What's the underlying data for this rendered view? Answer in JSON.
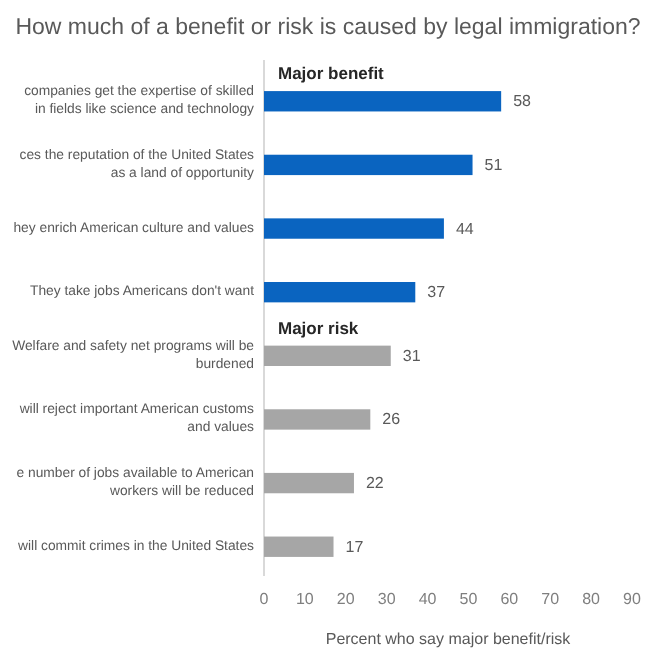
{
  "chart_data": {
    "type": "bar",
    "orientation": "horizontal",
    "title": "How much of a benefit or risk is caused by legal immigration?",
    "xlabel": "Percent who say major benefit/risk",
    "categories": [
      "companies get the expertise of skilled\nin fields like science and technology",
      "ces the reputation of the United States\nas a land of opportunity",
      "hey enrich American culture and values",
      "They take jobs Americans don't want",
      "Welfare and safety net programs will be\nburdened",
      "will reject important American customs\nand values",
      "e number of jobs available to American\nworkers will be reduced",
      "will commit crimes in the United States"
    ],
    "values": [
      58,
      51,
      44,
      37,
      31,
      26,
      22,
      17
    ],
    "colors": [
      "#0a64c0",
      "#0a64c0",
      "#0a64c0",
      "#0a64c0",
      "#a6a6a6",
      "#a6a6a6",
      "#a6a6a6",
      "#a6a6a6"
    ],
    "annotations": [
      "Major benefit",
      "Major risk"
    ],
    "xlim": [
      0,
      90
    ],
    "xticks": [
      0,
      10,
      20,
      30,
      40,
      50,
      60,
      70,
      80,
      90
    ],
    "data_labels": true,
    "grid": false
  }
}
